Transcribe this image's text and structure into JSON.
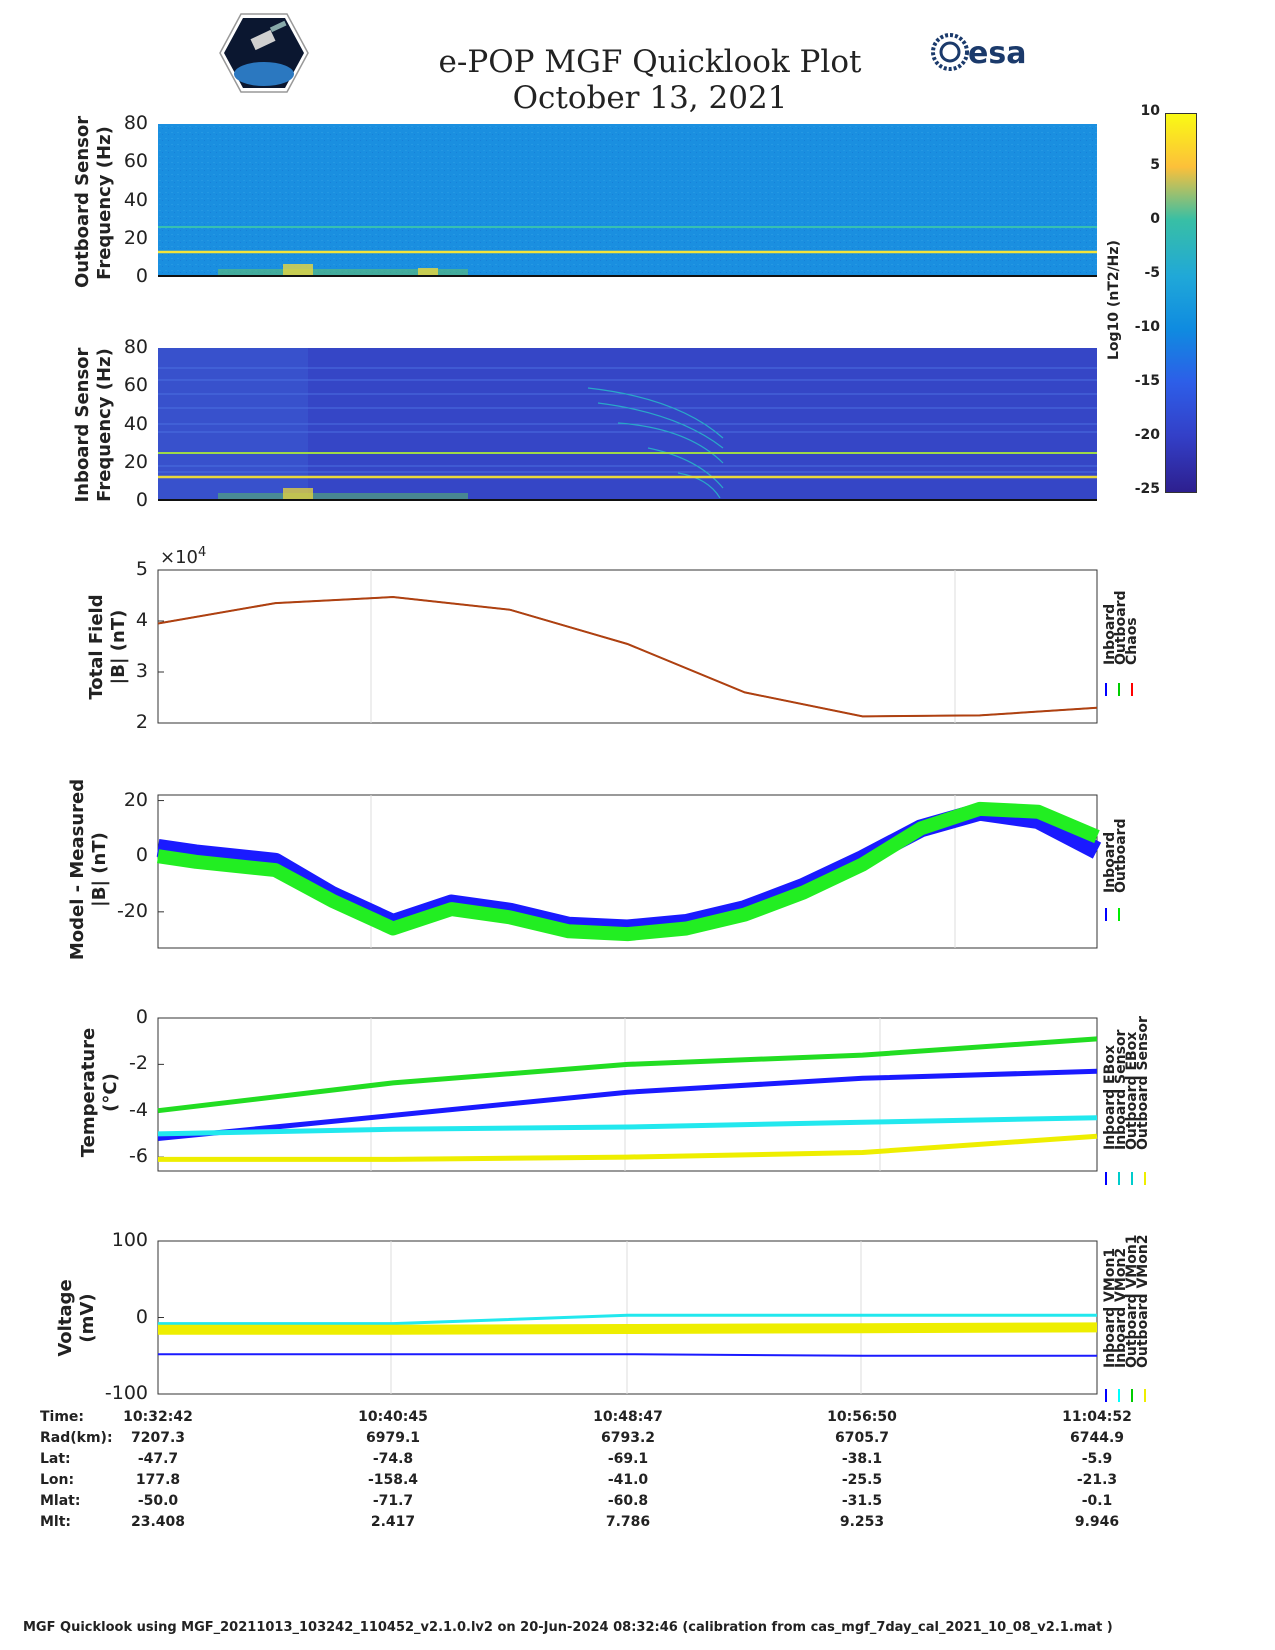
{
  "header": {
    "title_line1": "e-POP MGF Quicklook Plot",
    "title_line2": "October 13, 2021",
    "logo_left": "cassiope-mission-logo",
    "logo_right_text": "esa"
  },
  "colorbar": {
    "label": "Log10 (nT2/Hz)",
    "ticks": [
      "10",
      "5",
      "0",
      "-5",
      "-10",
      "-15",
      "-20",
      "-25"
    ],
    "colors": [
      "#fafa14",
      "#fcc03a",
      "#38bfa5",
      "#20a8d8",
      "#0f8be0",
      "#2d5ee8",
      "#3340c8",
      "#2d1f8f"
    ]
  },
  "panels": {
    "outboard_spec": {
      "ylabel1": "Outboard Sensor",
      "ylabel2": "Frequency (Hz)",
      "yticks": [
        "80",
        "60",
        "40",
        "20",
        "0"
      ]
    },
    "inboard_spec": {
      "ylabel1": "Inboard Sensor",
      "ylabel2": "Frequency (Hz)",
      "yticks": [
        "80",
        "60",
        "40",
        "20",
        "0"
      ]
    },
    "total_field": {
      "ylabel1": "Total Field",
      "ylabel2": "|B| (nT)",
      "yticks": [
        "5",
        "4",
        "3",
        "2"
      ],
      "exponent": "×10",
      "exponent_power": "4",
      "legend": [
        "Inboard",
        "Outboard",
        "Chaos"
      ]
    },
    "model_measured": {
      "ylabel1": "Model - Measured",
      "ylabel2": "|B| (nT)",
      "yticks": [
        "20",
        "0",
        "-20"
      ],
      "legend": [
        "Inboard",
        "Outboard"
      ]
    },
    "temperature": {
      "ylabel1": "Temperature",
      "ylabel2": "(°C)",
      "yticks": [
        "0",
        "-2",
        "-4",
        "-6"
      ],
      "legend": [
        "Inboard EBox",
        "Inboard Sensor",
        "Outboard EBox",
        "Outboard Sensor"
      ]
    },
    "voltage": {
      "ylabel1": "Voltage",
      "ylabel2": "(mV)",
      "yticks": [
        "100",
        "0",
        "-100"
      ],
      "legend": [
        "Inboard VMon1",
        "Inboard VMon2",
        "Outboard VMon1",
        "Outboard VMon2"
      ]
    }
  },
  "chart_data": [
    {
      "type": "heatmap",
      "name": "Outboard Sensor",
      "ylim": [
        0,
        80
      ],
      "line_frequencies_hz": [
        13,
        26
      ],
      "colorbar_range": [
        -25,
        10
      ]
    },
    {
      "type": "heatmap",
      "name": "Inboard Sensor",
      "ylim": [
        0,
        80
      ],
      "line_frequencies_hz": [
        13,
        26
      ],
      "colorbar_range": [
        -25,
        10
      ]
    },
    {
      "type": "line",
      "ylim": [
        2,
        5
      ],
      "ylabel": "Total Field |B| (nT)",
      "y_scale": "×10^4",
      "x": [
        "10:32:42",
        "10:36:43",
        "10:40:45",
        "10:44:46",
        "10:48:47",
        "10:52:48",
        "10:56:50",
        "11:00:51",
        "11:04:52"
      ],
      "series": [
        {
          "name": "Inboard",
          "values": [
            3.95,
            4.35,
            4.47,
            4.22,
            3.55,
            2.6,
            2.13,
            2.15,
            2.3
          ]
        },
        {
          "name": "Outboard",
          "values": [
            3.95,
            4.35,
            4.47,
            4.22,
            3.55,
            2.6,
            2.13,
            2.15,
            2.3
          ]
        },
        {
          "name": "Chaos",
          "values": [
            3.95,
            4.35,
            4.47,
            4.22,
            3.55,
            2.6,
            2.13,
            2.15,
            2.3
          ]
        }
      ]
    },
    {
      "type": "line",
      "ylim": [
        -33,
        22
      ],
      "ylabel": "Model - Measured |B| (nT)",
      "x": [
        "10:32:42",
        "10:34:00",
        "10:36:43",
        "10:38:40",
        "10:40:45",
        "10:42:45",
        "10:44:46",
        "10:46:46",
        "10:48:47",
        "10:50:48",
        "10:52:48",
        "10:54:49",
        "10:56:50",
        "10:58:50",
        "11:00:51",
        "11:02:51",
        "11:04:52"
      ],
      "series": [
        {
          "name": "Inboard",
          "values": [
            3,
            1,
            -2,
            -14,
            -24,
            -17,
            -20,
            -25,
            -26,
            -24,
            -19,
            -11,
            -1,
            10,
            16,
            13,
            2
          ]
        },
        {
          "name": "Outboard",
          "values": [
            0,
            -2,
            -5,
            -16,
            -26,
            -19,
            -22,
            -27,
            -28,
            -26,
            -21,
            -13,
            -3,
            10,
            17,
            16,
            7
          ]
        }
      ]
    },
    {
      "type": "line",
      "ylim": [
        -6.6,
        0
      ],
      "ylabel": "Temperature (°C)",
      "x": [
        "10:32:42",
        "10:40:45",
        "10:48:47",
        "10:56:50",
        "11:04:52"
      ],
      "series": [
        {
          "name": "Inboard EBox",
          "values": [
            -4.0,
            -2.8,
            -2.0,
            -1.6,
            -0.9
          ]
        },
        {
          "name": "Inboard Sensor",
          "values": [
            -5.2,
            -4.2,
            -3.2,
            -2.6,
            -2.3
          ]
        },
        {
          "name": "Outboard EBox",
          "values": [
            -5.0,
            -4.8,
            -4.7,
            -4.5,
            -4.3
          ]
        },
        {
          "name": "Outboard Sensor",
          "values": [
            -6.1,
            -6.1,
            -6.0,
            -5.8,
            -5.1
          ]
        }
      ]
    },
    {
      "type": "line",
      "ylim": [
        -100,
        100
      ],
      "ylabel": "Voltage (mV)",
      "x": [
        "10:32:42",
        "10:40:45",
        "10:48:47",
        "10:56:50",
        "11:04:52"
      ],
      "series": [
        {
          "name": "Inboard VMon1",
          "values": [
            -48,
            -48,
            -48,
            -50,
            -50
          ]
        },
        {
          "name": "Inboard VMon2",
          "values": [
            -8,
            -8,
            3,
            3,
            3
          ]
        },
        {
          "name": "Outboard VMon1",
          "values": [
            -14,
            -14,
            -12,
            -12,
            -12
          ]
        },
        {
          "name": "Outboard VMon2",
          "values": [
            -16,
            -16,
            -15,
            -14,
            -13
          ]
        }
      ]
    }
  ],
  "orbit_info": {
    "row_labels": [
      "Time:",
      "Rad(km):",
      "Lat:",
      "Lon:",
      "Mlat:",
      "Mlt:"
    ],
    "columns": [
      [
        "10:32:42",
        "7207.3",
        "-47.7",
        "177.8",
        "-50.0",
        "23.408"
      ],
      [
        "10:40:45",
        "6979.1",
        "-74.8",
        "-158.4",
        "-71.7",
        "2.417"
      ],
      [
        "10:48:47",
        "6793.2",
        "-69.1",
        "-41.0",
        "-60.8",
        "7.786"
      ],
      [
        "10:56:50",
        "6705.7",
        "-38.1",
        "-25.5",
        "-31.5",
        "9.253"
      ],
      [
        "11:04:52",
        "6744.9",
        "-5.9",
        "-21.3",
        "-0.1",
        "9.946"
      ]
    ]
  },
  "footer": "MGF Quicklook using MGF_20211013_103242_110452_v2.1.0.lv2 on 20-Jun-2024 08:32:46 (calibration from cas_mgf_7day_cal_2021_10_08_v2.1.mat )",
  "colors": {
    "inboard": "#0000ff",
    "outboard": "#00ee00",
    "chaos": "#ff0000",
    "cyan": "#00ffff",
    "yellow": "#ffff00"
  }
}
